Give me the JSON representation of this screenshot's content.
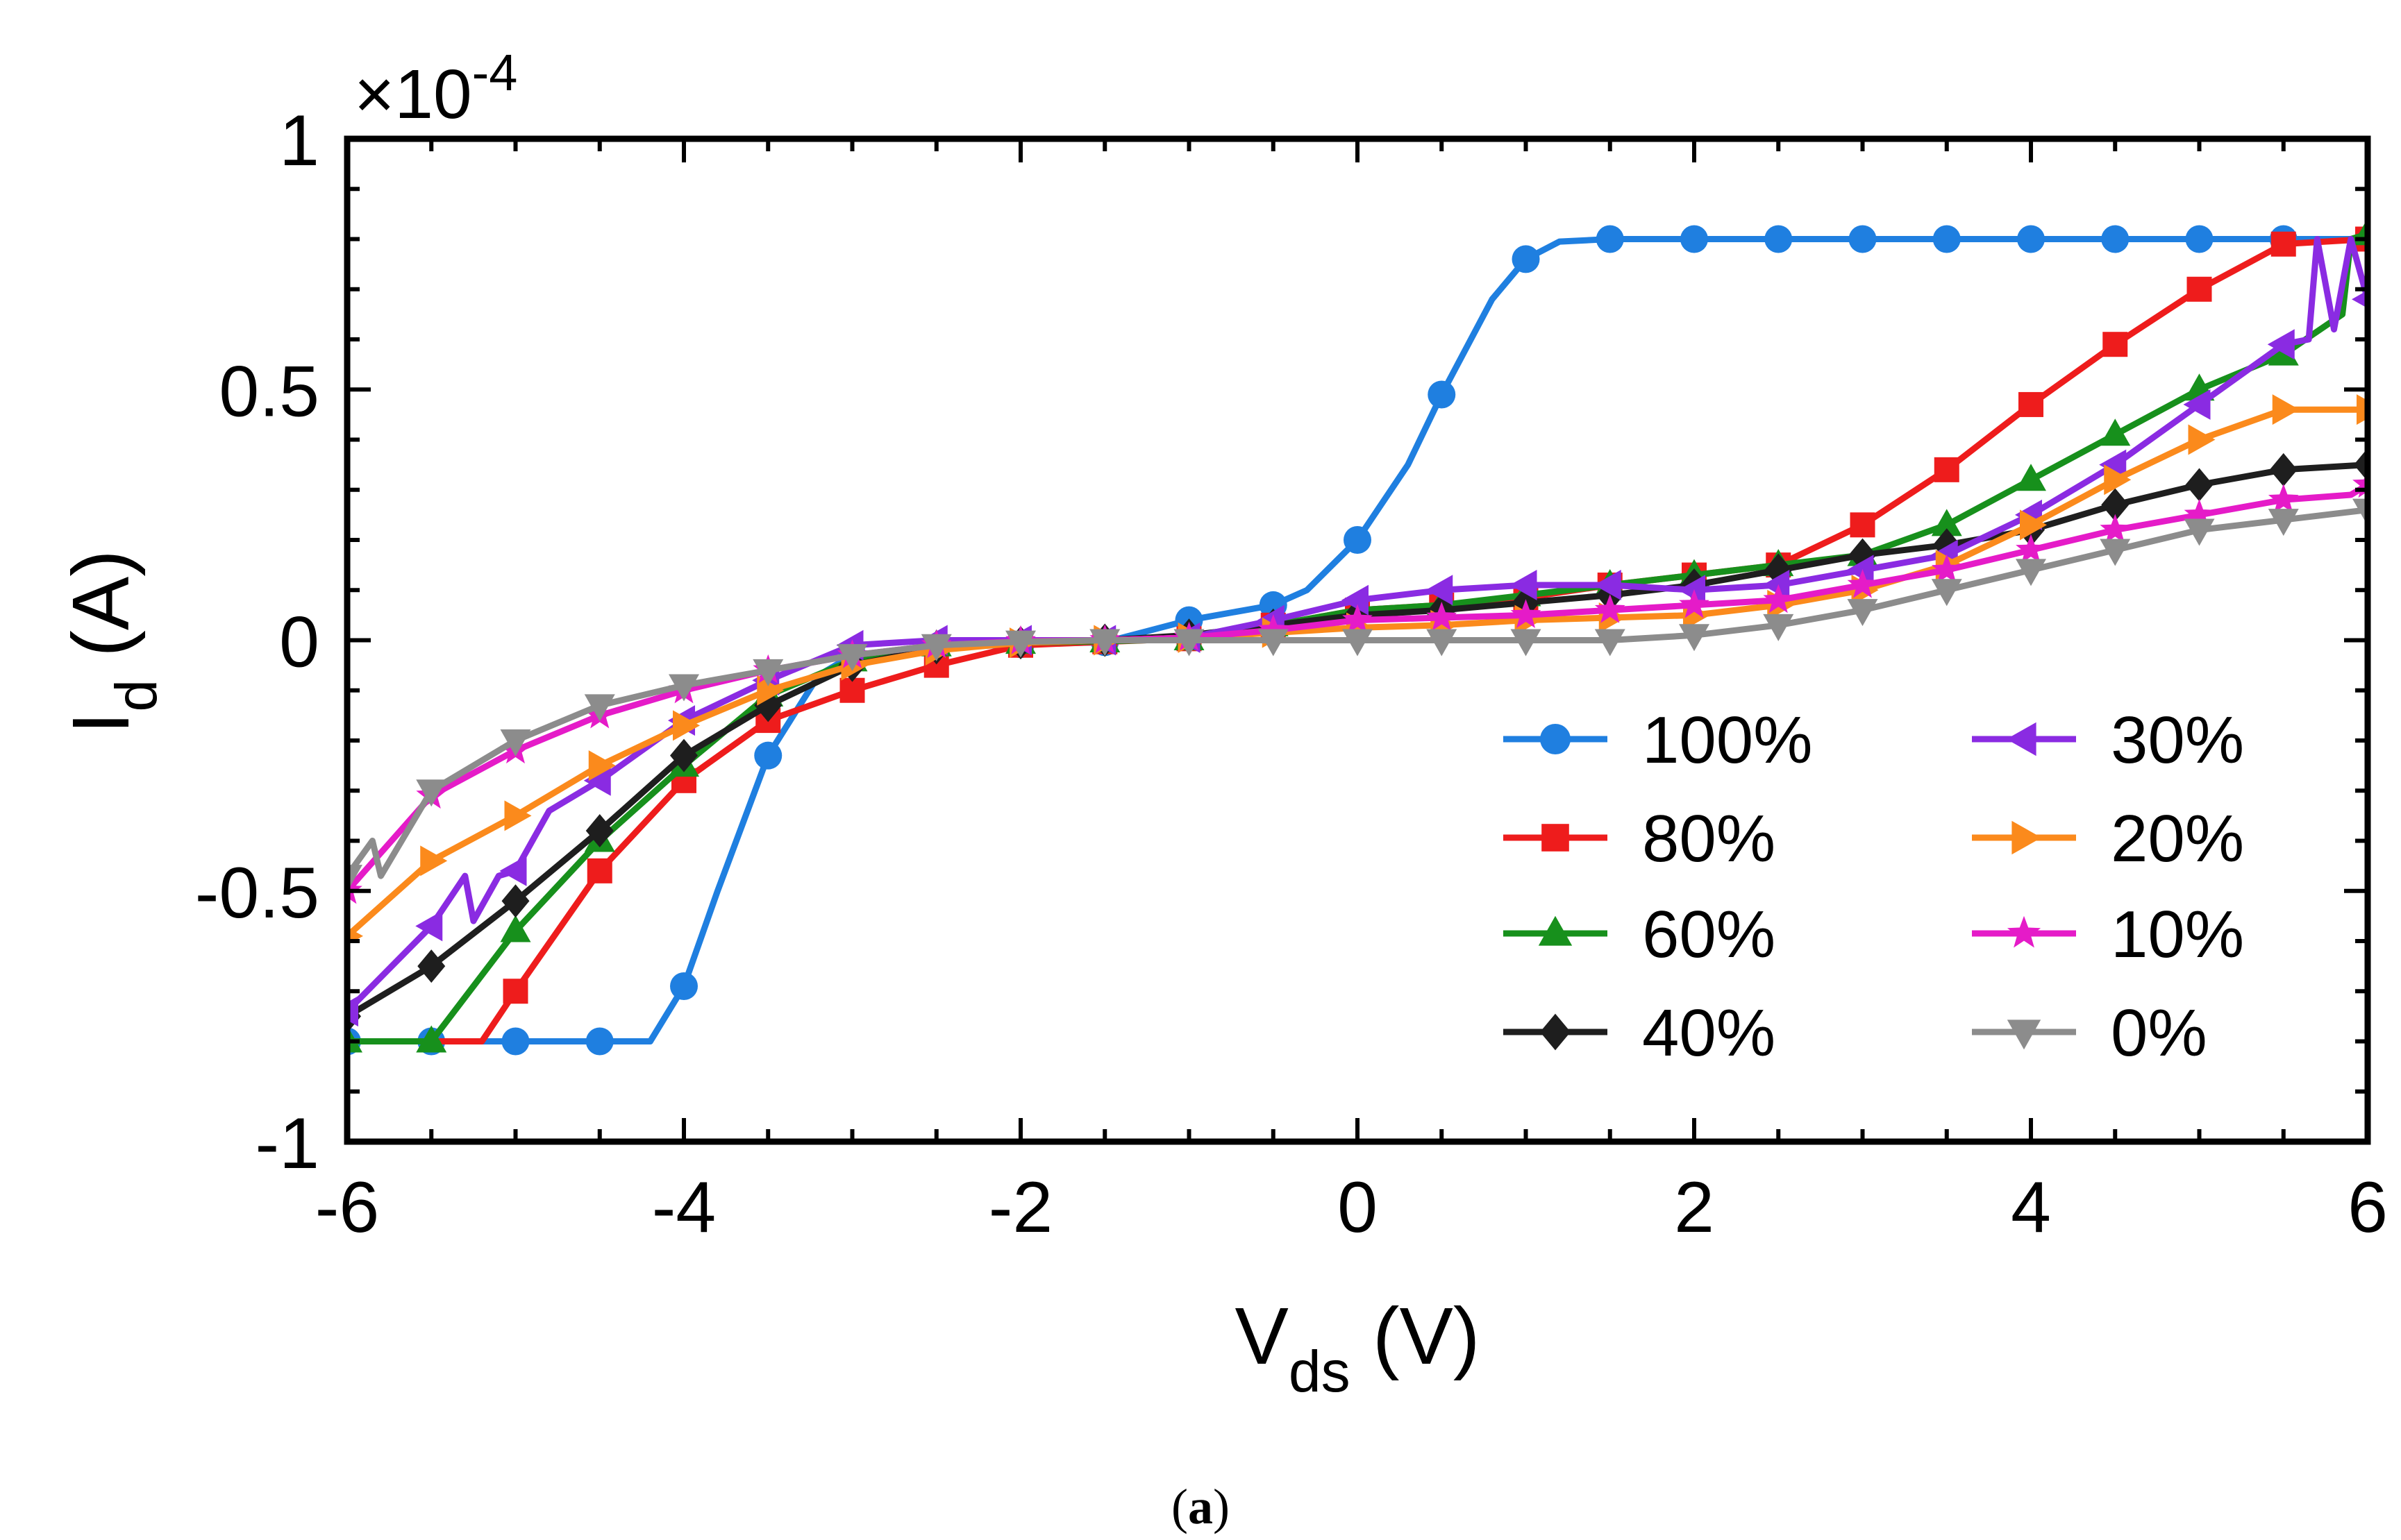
{
  "chart_data": {
    "type": "line",
    "title": "",
    "xlabel": {
      "main": "V",
      "sub": "ds",
      "unit": " (V)"
    },
    "ylabel": {
      "main": "I",
      "sub": "d",
      "unit": " (A)"
    },
    "y_multiplier": {
      "prefix": "×10",
      "exponent": "-4"
    },
    "xlim": [
      -6,
      6
    ],
    "ylim": [
      -1,
      1
    ],
    "x_ticks": [
      -6,
      -4,
      -2,
      0,
      2,
      4,
      6
    ],
    "x_tick_labels": [
      "-6",
      "-4",
      "-2",
      "0",
      "2",
      "4",
      "6"
    ],
    "y_ticks": [
      -1,
      -0.5,
      0,
      0.5,
      1
    ],
    "y_tick_labels": [
      "-1",
      "-0.5",
      "0",
      "0.5",
      "1"
    ],
    "legend_position": "lower-right",
    "caption": {
      "open": "(",
      "letter": "a",
      "close": ")"
    },
    "series": [
      {
        "name": "100%",
        "color": "#1f7fe0",
        "marker": "circle",
        "x": [
          -6,
          -5.5,
          -5,
          -4.5,
          -4.2,
          -4,
          -3.8,
          -3.5,
          -3.2,
          -3,
          -2.5,
          -2,
          -1.5,
          -1,
          -0.5,
          -0.3,
          0,
          0.3,
          0.5,
          0.8,
          1,
          1.2,
          1.5,
          2,
          2.5,
          3,
          3.5,
          4,
          4.5,
          5,
          5.5,
          6
        ],
        "y": [
          -0.8,
          -0.8,
          -0.8,
          -0.8,
          -0.8,
          -0.69,
          -0.5,
          -0.23,
          -0.07,
          -0.03,
          -0.015,
          -0.008,
          -0.004,
          0.04,
          0.07,
          0.1,
          0.2,
          0.35,
          0.49,
          0.68,
          0.76,
          0.795,
          0.8,
          0.8,
          0.8,
          0.8,
          0.8,
          0.8,
          0.8,
          0.8,
          0.8,
          0.8
        ],
        "mx": [
          -6,
          -5.5,
          -5,
          -4.5,
          -4,
          -3.5,
          -3,
          -2.5,
          -2,
          -1.5,
          -1,
          -0.5,
          0,
          0.5,
          1,
          1.5,
          2,
          2.5,
          3,
          3.5,
          4,
          4.5,
          5,
          5.5
        ]
      },
      {
        "name": "80%",
        "color": "#ee1c1c",
        "marker": "square",
        "x": [
          -6,
          -5.5,
          -5.2,
          -5,
          -4.5,
          -4,
          -3.5,
          -3,
          -2.5,
          -2,
          -1.5,
          -1,
          -0.5,
          0,
          0.5,
          1,
          1.5,
          2,
          2.5,
          3,
          3.5,
          4,
          4.5,
          5,
          5.5,
          6
        ],
        "y": [
          -0.8,
          -0.8,
          -0.8,
          -0.7,
          -0.46,
          -0.28,
          -0.16,
          -0.1,
          -0.05,
          -0.01,
          -0.003,
          0.003,
          0.03,
          0.06,
          0.07,
          0.085,
          0.11,
          0.13,
          0.15,
          0.23,
          0.34,
          0.47,
          0.59,
          0.7,
          0.79,
          0.8
        ],
        "mx": [
          -5,
          -4.5,
          -4,
          -3.5,
          -3,
          -2.5,
          -2,
          -1.5,
          -1,
          -0.5,
          0,
          0.5,
          1,
          1.5,
          2,
          2.5,
          3,
          3.5,
          4,
          4.5,
          5,
          5.5,
          6
        ]
      },
      {
        "name": "60%",
        "color": "#17901c",
        "marker": "triangle-up",
        "x": [
          -6,
          -5.5,
          -5,
          -4.5,
          -4,
          -3.5,
          -3,
          -2.5,
          -2,
          -1.5,
          -1,
          -0.5,
          0,
          0.5,
          1,
          1.5,
          2,
          2.5,
          3,
          3.5,
          4,
          4.5,
          5,
          5.5,
          5.85,
          5.9,
          6
        ],
        "y": [
          -0.8,
          -0.8,
          -0.58,
          -0.4,
          -0.25,
          -0.11,
          -0.04,
          -0.01,
          -0.005,
          -0.002,
          0.002,
          0.03,
          0.06,
          0.07,
          0.09,
          0.11,
          0.13,
          0.15,
          0.17,
          0.23,
          0.32,
          0.41,
          0.5,
          0.57,
          0.65,
          0.8,
          0.81
        ],
        "mx": [
          -6,
          -5.5,
          -5,
          -4.5,
          -4,
          -3.5,
          -3,
          -2.5,
          -2,
          -1.5,
          -1,
          -0.5,
          0,
          0.5,
          1,
          1.5,
          2,
          2.5,
          3,
          3.5,
          4,
          4.5,
          5,
          5.5,
          6
        ]
      },
      {
        "name": "40%",
        "color": "#1e1e1e",
        "marker": "diamond",
        "x": [
          -6,
          -5.5,
          -5,
          -4.5,
          -4,
          -3.5,
          -3,
          -2.5,
          -2,
          -1.5,
          -1,
          -0.5,
          0,
          0.5,
          1,
          1.5,
          2,
          2.5,
          3,
          3.5,
          4,
          4.5,
          5,
          5.5,
          6
        ],
        "y": [
          -0.75,
          -0.65,
          -0.52,
          -0.38,
          -0.23,
          -0.13,
          -0.05,
          -0.015,
          -0.005,
          0,
          0.01,
          0.03,
          0.05,
          0.06,
          0.075,
          0.09,
          0.11,
          0.14,
          0.17,
          0.19,
          0.22,
          0.27,
          0.31,
          0.34,
          0.35
        ],
        "mx": [
          -6,
          -5.5,
          -5,
          -4.5,
          -4,
          -3.5,
          -3,
          -2.5,
          -2,
          -1.5,
          -1,
          -0.5,
          0,
          0.5,
          1,
          1.5,
          2,
          2.5,
          3,
          3.5,
          4,
          4.5,
          5,
          5.5,
          6
        ]
      },
      {
        "name": "30%",
        "color": "#8a2be2",
        "marker": "triangle-left",
        "x": [
          -6,
          -5.5,
          -5.3,
          -5.25,
          -5.1,
          -5,
          -4.8,
          -4.5,
          -4,
          -3.5,
          -3,
          -2.5,
          -2,
          -1.5,
          -1,
          -0.5,
          0,
          0.5,
          1,
          1.5,
          2,
          2.5,
          3,
          3.5,
          4,
          4.5,
          5,
          5.5,
          5.65,
          5.7,
          5.8,
          5.9,
          6
        ],
        "y": [
          -0.74,
          -0.57,
          -0.47,
          -0.56,
          -0.47,
          -0.46,
          -0.34,
          -0.28,
          -0.16,
          -0.08,
          -0.01,
          0,
          0,
          0,
          0.005,
          0.04,
          0.08,
          0.1,
          0.11,
          0.11,
          0.1,
          0.11,
          0.14,
          0.17,
          0.25,
          0.35,
          0.47,
          0.59,
          0.6,
          0.8,
          0.62,
          0.8,
          0.68
        ],
        "mx": [
          -6,
          -5.5,
          -5,
          -4.5,
          -4,
          -3.5,
          -3,
          -2.5,
          -2,
          -1.5,
          -1,
          -0.5,
          0,
          0.5,
          1,
          1.5,
          2,
          2.5,
          3,
          3.5,
          4,
          4.5,
          5,
          5.5,
          6
        ]
      },
      {
        "name": "20%",
        "color": "#fb8a1c",
        "marker": "triangle-right",
        "x": [
          -6,
          -5.5,
          -5,
          -4.5,
          -4,
          -3.5,
          -3,
          -2.5,
          -2,
          -1.5,
          -1,
          -0.5,
          0,
          0.5,
          1,
          1.5,
          2,
          2.5,
          3,
          3.5,
          4,
          4.5,
          5,
          5.5,
          6
        ],
        "y": [
          -0.59,
          -0.44,
          -0.35,
          -0.25,
          -0.17,
          -0.1,
          -0.05,
          -0.02,
          -0.005,
          0,
          0.005,
          0.015,
          0.025,
          0.03,
          0.04,
          0.045,
          0.05,
          0.07,
          0.1,
          0.15,
          0.23,
          0.32,
          0.4,
          0.46,
          0.46
        ],
        "mx": [
          -6,
          -5.5,
          -5,
          -4.5,
          -4,
          -3.5,
          -3,
          -2.5,
          -2,
          -1.5,
          -1,
          -0.5,
          0,
          0.5,
          1,
          1.5,
          2,
          2.5,
          3,
          3.5,
          4,
          4.5,
          5,
          5.5,
          6
        ]
      },
      {
        "name": "10%",
        "color": "#e51bc8",
        "marker": "star",
        "x": [
          -6,
          -5.5,
          -5,
          -4.5,
          -4,
          -3.5,
          -3,
          -2.5,
          -2,
          -1.5,
          -1,
          -0.5,
          0,
          0.5,
          1,
          1.5,
          2,
          2.5,
          3,
          3.5,
          4,
          4.5,
          5,
          5.5,
          5.9,
          6
        ],
        "y": [
          -0.5,
          -0.31,
          -0.22,
          -0.15,
          -0.1,
          -0.06,
          -0.03,
          -0.01,
          -0.002,
          0,
          0.005,
          0.02,
          0.04,
          0.045,
          0.05,
          0.06,
          0.07,
          0.08,
          0.11,
          0.14,
          0.18,
          0.22,
          0.25,
          0.28,
          0.29,
          0.31
        ],
        "mx": [
          -6,
          -5.5,
          -5,
          -4.5,
          -4,
          -3.5,
          -3,
          -2.5,
          -2,
          -1.5,
          -1,
          -0.5,
          0,
          0.5,
          1,
          1.5,
          2,
          2.5,
          3,
          3.5,
          4,
          4.5,
          5,
          5.5,
          6
        ]
      },
      {
        "name": "0%",
        "color": "#8c8c8c",
        "marker": "triangle-down",
        "x": [
          -6,
          -5.85,
          -5.8,
          -5.5,
          -5,
          -4.5,
          -4,
          -3.5,
          -3,
          -2.5,
          -2,
          -1.5,
          -1,
          -0.5,
          0,
          0.5,
          1,
          1.5,
          2,
          2.5,
          3,
          3.5,
          4,
          4.5,
          5,
          5.5,
          6
        ],
        "y": [
          -0.47,
          -0.4,
          -0.47,
          -0.3,
          -0.2,
          -0.13,
          -0.09,
          -0.06,
          -0.03,
          -0.01,
          -0.003,
          0,
          0,
          0,
          0,
          0,
          0,
          0,
          0.01,
          0.03,
          0.06,
          0.1,
          0.14,
          0.18,
          0.22,
          0.24,
          0.26
        ],
        "mx": [
          -6,
          -5.5,
          -5,
          -4.5,
          -4,
          -3.5,
          -3,
          -2.5,
          -2,
          -1.5,
          -1,
          -0.5,
          0,
          0.5,
          1,
          1.5,
          2,
          2.5,
          3,
          3.5,
          4,
          4.5,
          5,
          5.5,
          6
        ]
      }
    ]
  }
}
